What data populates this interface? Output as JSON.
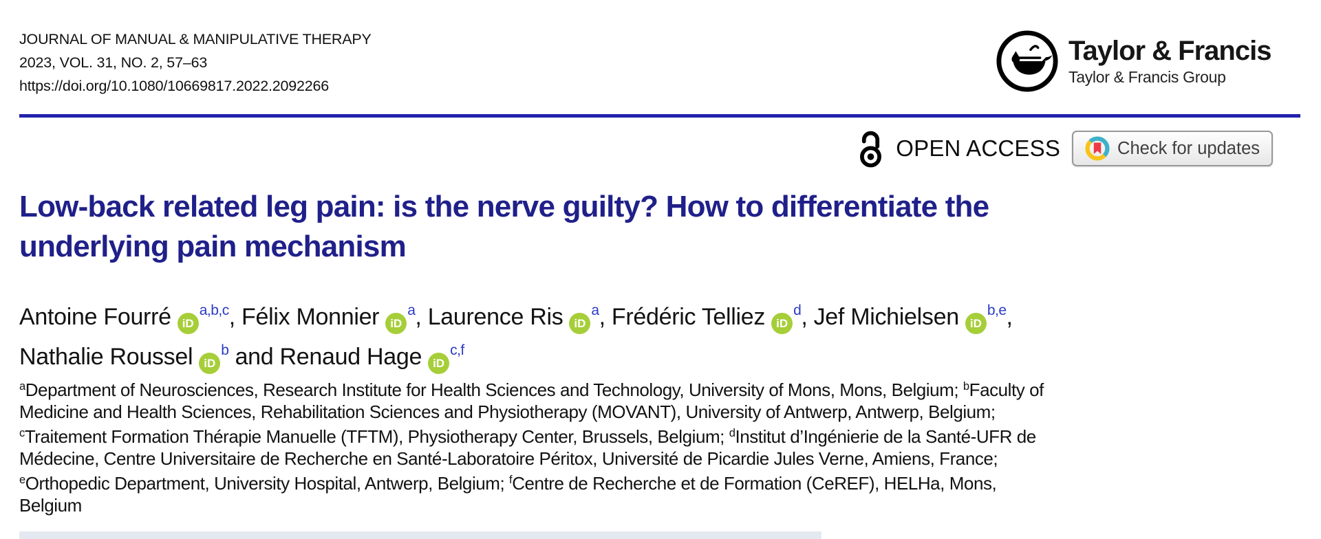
{
  "journal": {
    "name": "JOURNAL OF MANUAL & MANIPULATIVE THERAPY",
    "citation": "2023, VOL. 31, NO. 2, 57–63",
    "doi": "https://doi.org/10.1080/10669817.2022.2092266"
  },
  "publisher": {
    "name": "Taylor & Francis",
    "group": "Taylor & Francis Group",
    "logo_icon": "lamp-in-circle-icon"
  },
  "access": {
    "open_access_label": "OPEN ACCESS",
    "open_access_icon": "open-padlock-icon",
    "check_updates_label": "Check for updates",
    "check_updates_icon": "crossmark-bookmark-icon"
  },
  "article": {
    "title": "Low-back related leg pain: is the nerve guilty? How to differentiate the underlying pain mechanism",
    "title_lines": [
      "Low-back related leg pain: is the nerve guilty? How to differentiate the",
      "underlying pain mechanism"
    ],
    "orcid_icon_text": "iD",
    "authors": [
      {
        "name": "Antoine Fourré",
        "sup": "a,b,c",
        "sep": ", "
      },
      {
        "name": "Félix Monnier",
        "sup": "a",
        "sep": ", "
      },
      {
        "name": "Laurence Ris",
        "sup": "a",
        "sep": ", "
      },
      {
        "name": "Frédéric Telliez",
        "sup": "d",
        "sep": ", "
      },
      {
        "name": "Jef Michielsen",
        "sup": "b,e",
        "sep": ",",
        "break_after": true
      },
      {
        "name": "Nathalie Roussel",
        "sup": "b",
        "sep": " and "
      },
      {
        "name": "Renaud Hage",
        "sup": "c,f",
        "sep": ""
      }
    ],
    "affiliations": [
      {
        "sup": "a",
        "text": "Department of Neurosciences, Research Institute for Health Sciences and Technology, University of Mons, Mons, Belgium"
      },
      {
        "sup": "b",
        "text": "Faculty of Medicine and Health Sciences, Rehabilitation Sciences and Physiotherapy (MOVANT), University of Antwerp, Antwerp, Belgium"
      },
      {
        "sup": "c",
        "text": "Traitement Formation Thérapie Manuelle (TFTM), Physiotherapy Center, Brussels, Belgium"
      },
      {
        "sup": "d",
        "text": "Institut d’Ingénierie de la Santé-UFR de Médecine, Centre Universitaire de Recherche en Santé-Laboratoire Péritox, Université de Picardie Jules Verne, Amiens, France"
      },
      {
        "sup": "e",
        "text": "Orthopedic Department, University Hospital, Antwerp, Belgium"
      },
      {
        "sup": "f",
        "text": "Centre de Recherche et de Formation (CeREF), HELHa, Mons, Belgium"
      }
    ],
    "affiliation_separator": "; "
  },
  "colors": {
    "navy": "#20208a",
    "rule": "#2122ad",
    "supblue": "#2c3bc4",
    "orcid": "#a6ce39",
    "crossmark_teal": "#3eb1c8",
    "crossmark_yellow": "#f8c31c",
    "crossmark_red": "#ee3a45",
    "strip": "#e4e8f0"
  }
}
